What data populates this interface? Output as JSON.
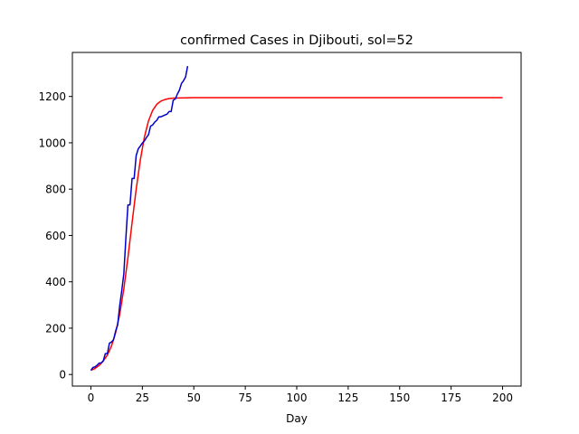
{
  "chart_data": {
    "type": "line",
    "title": "confirmed Cases in Djibouti, sol=52",
    "xlabel": "Day",
    "ylabel": "",
    "xlim": [
      -9,
      209
    ],
    "ylim": [
      -50,
      1390
    ],
    "xticks": [
      0,
      25,
      50,
      75,
      100,
      125,
      150,
      175,
      200
    ],
    "xtick_labels": [
      "0",
      "25",
      "50",
      "75",
      "100",
      "125",
      "150",
      "175",
      "200"
    ],
    "yticks": [
      0,
      200,
      400,
      600,
      800,
      1000,
      1200
    ],
    "ytick_labels": [
      "0",
      "200",
      "400",
      "600",
      "800",
      "1000",
      "1200"
    ],
    "grid": false,
    "legend": "none",
    "series": [
      {
        "color": "#ff0000",
        "kind": "fitted-curve",
        "x": [
          0,
          2,
          4,
          6,
          8,
          10,
          12,
          14,
          16,
          18,
          20,
          22,
          24,
          26,
          28,
          30,
          32,
          34,
          36,
          38,
          40,
          45,
          50,
          60,
          80,
          100,
          150,
          200
        ],
        "values": [
          18,
          26,
          39,
          58,
          84,
          123,
          180,
          260,
          370,
          505,
          655,
          800,
          925,
          1025,
          1095,
          1140,
          1166,
          1180,
          1187,
          1191,
          1193,
          1194,
          1195,
          1195,
          1195,
          1195,
          1195,
          1195
        ]
      },
      {
        "color": "#0000cc",
        "kind": "observed",
        "x": [
          0,
          1,
          2,
          3,
          4,
          5,
          6,
          7,
          8,
          9,
          10,
          11,
          12,
          13,
          14,
          15,
          16,
          17,
          18,
          19,
          20,
          21,
          22,
          23,
          24,
          25,
          26,
          27,
          28,
          29,
          30,
          31,
          32,
          33,
          34,
          35,
          36,
          37,
          38,
          39,
          40,
          41,
          42,
          43,
          44,
          45,
          46,
          47
        ],
        "values": [
          18,
          30,
          33,
          40,
          49,
          50,
          59,
          90,
          90,
          135,
          140,
          150,
          187,
          214,
          298,
          363,
          435,
          591,
          732,
          732,
          846,
          846,
          945,
          974,
          986,
          999,
          1008,
          1023,
          1035,
          1072,
          1077,
          1089,
          1097,
          1112,
          1112,
          1116,
          1120,
          1124,
          1135,
          1135,
          1184,
          1189,
          1210,
          1227,
          1256,
          1268,
          1284,
          1331
        ]
      }
    ]
  }
}
